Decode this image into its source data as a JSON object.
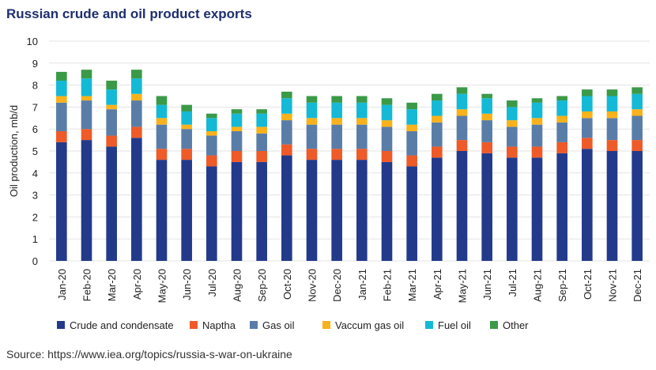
{
  "title": "Russian crude and oil product exports",
  "source": "Source: https://www.iea.org/topics/russia-s-war-on-ukraine",
  "chart_data": {
    "type": "bar",
    "stacked": true,
    "ylabel": "Oil production, mb/d",
    "xlabel": "",
    "ylim": [
      0,
      10
    ],
    "yticks": [
      0,
      1,
      2,
      3,
      4,
      5,
      6,
      7,
      8,
      9,
      10
    ],
    "grid": true,
    "legend_position": "bottom",
    "categories": [
      "Jan-20",
      "Feb-20",
      "Mar-20",
      "Apr-20",
      "May-20",
      "Jun-20",
      "Jul-20",
      "Aug-20",
      "Sep-20",
      "Oct-20",
      "Nov-20",
      "Dec-20",
      "Jan-21",
      "Feb-21",
      "Mar-21",
      "Apr-21",
      "May-21",
      "Jun-21",
      "Jul-21",
      "Aug-21",
      "Sep-21",
      "Oct-21",
      "Nov-21",
      "Dec-21"
    ],
    "series": [
      {
        "name": "Crude and condensate",
        "color": "#233a8b",
        "values": [
          5.4,
          5.5,
          5.2,
          5.6,
          4.6,
          4.6,
          4.3,
          4.5,
          4.5,
          4.8,
          4.6,
          4.6,
          4.6,
          4.5,
          4.3,
          4.7,
          5.0,
          4.9,
          4.7,
          4.7,
          4.9,
          5.1,
          5.0,
          5.0
        ]
      },
      {
        "name": "Naptha",
        "color": "#ee5a28",
        "values": [
          0.5,
          0.5,
          0.5,
          0.5,
          0.5,
          0.5,
          0.5,
          0.5,
          0.5,
          0.5,
          0.5,
          0.5,
          0.5,
          0.5,
          0.5,
          0.5,
          0.5,
          0.5,
          0.5,
          0.5,
          0.5,
          0.5,
          0.5,
          0.5
        ]
      },
      {
        "name": "Gas oil",
        "color": "#5a7da8",
        "values": [
          1.3,
          1.3,
          1.2,
          1.2,
          1.1,
          0.9,
          0.9,
          0.9,
          0.8,
          1.1,
          1.1,
          1.1,
          1.1,
          1.1,
          1.1,
          1.1,
          1.1,
          1.0,
          0.9,
          1.0,
          0.9,
          0.9,
          1.0,
          1.1
        ]
      },
      {
        "name": "Vaccum gas oil",
        "color": "#f9b21b",
        "values": [
          0.3,
          0.2,
          0.2,
          0.3,
          0.3,
          0.2,
          0.2,
          0.2,
          0.3,
          0.3,
          0.3,
          0.3,
          0.3,
          0.3,
          0.3,
          0.3,
          0.3,
          0.3,
          0.3,
          0.3,
          0.3,
          0.3,
          0.3,
          0.3
        ]
      },
      {
        "name": "Fuel oil",
        "color": "#14b9d6",
        "values": [
          0.7,
          0.8,
          0.7,
          0.7,
          0.6,
          0.6,
          0.6,
          0.6,
          0.6,
          0.7,
          0.7,
          0.7,
          0.7,
          0.7,
          0.7,
          0.7,
          0.7,
          0.7,
          0.6,
          0.7,
          0.7,
          0.7,
          0.7,
          0.7
        ]
      },
      {
        "name": "Other",
        "color": "#3a9a48",
        "values": [
          0.4,
          0.4,
          0.4,
          0.4,
          0.4,
          0.3,
          0.2,
          0.2,
          0.2,
          0.3,
          0.3,
          0.3,
          0.3,
          0.3,
          0.3,
          0.3,
          0.3,
          0.2,
          0.3,
          0.2,
          0.2,
          0.3,
          0.3,
          0.3
        ]
      }
    ]
  }
}
